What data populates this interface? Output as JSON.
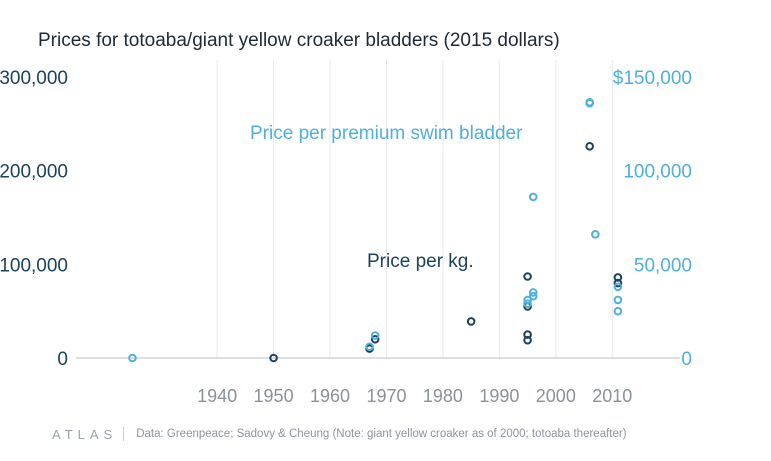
{
  "title": "Prices for totoaba/giant yellow croaker bladders (2015 dollars)",
  "footer": {
    "logo": "ATLAS",
    "source": "Data: Greenpeace; Sadovy & Cheung (Note: giant yellow croaker as of 2000; totoaba thereafter)"
  },
  "colors": {
    "per_kg": "#1d4359",
    "per_bladder": "#4fb0dd",
    "axis_left": "#1d4359",
    "axis_right": "#4fb0dd",
    "grid": "#e6e9ec",
    "baseline": "#b9bfc5",
    "x_ticks": "#8a9299"
  },
  "chart_data": {
    "type": "scatter",
    "title": "Prices for totoaba/giant yellow croaker bladders (2015 dollars)",
    "x_ticks": [
      1940,
      1950,
      1960,
      1970,
      1980,
      1990,
      2000,
      2010
    ],
    "xlim": [
      1915,
      2022
    ],
    "y_left": {
      "lim": [
        0,
        300000
      ],
      "ticks": [
        0,
        100000,
        200000,
        300000
      ],
      "tick_labels": [
        "0",
        "100,000",
        "200,000",
        "$300,000"
      ]
    },
    "y_right": {
      "lim": [
        0,
        150000
      ],
      "ticks": [
        0,
        50000,
        100000,
        150000
      ],
      "tick_labels": [
        "0",
        "50,000",
        "100,000",
        "$150,000"
      ]
    },
    "grid": true,
    "series": [
      {
        "name": "Price per kg.",
        "axis": "left",
        "points": [
          {
            "x": 1950,
            "y": 0
          },
          {
            "x": 1967,
            "y": 10000
          },
          {
            "x": 1968,
            "y": 20000
          },
          {
            "x": 1985,
            "y": 39000
          },
          {
            "x": 1995,
            "y": 19000
          },
          {
            "x": 1995,
            "y": 25000
          },
          {
            "x": 1995,
            "y": 55000
          },
          {
            "x": 1995,
            "y": 87000
          },
          {
            "x": 2006,
            "y": 226000
          },
          {
            "x": 2011,
            "y": 80000
          },
          {
            "x": 2011,
            "y": 86000
          }
        ]
      },
      {
        "name": "Price per premium swim bladder",
        "axis": "right",
        "points": [
          {
            "x": 1925,
            "y": 0
          },
          {
            "x": 1967,
            "y": 6000
          },
          {
            "x": 1968,
            "y": 12000
          },
          {
            "x": 1995,
            "y": 29000
          },
          {
            "x": 1995,
            "y": 31000
          },
          {
            "x": 1996,
            "y": 33000
          },
          {
            "x": 1996,
            "y": 35000
          },
          {
            "x": 1996,
            "y": 86000
          },
          {
            "x": 2006,
            "y": 136000
          },
          {
            "x": 2006,
            "y": 136500
          },
          {
            "x": 2007,
            "y": 66000
          },
          {
            "x": 2011,
            "y": 25000
          },
          {
            "x": 2011,
            "y": 31000
          },
          {
            "x": 2011,
            "y": 38000
          }
        ]
      }
    ]
  }
}
